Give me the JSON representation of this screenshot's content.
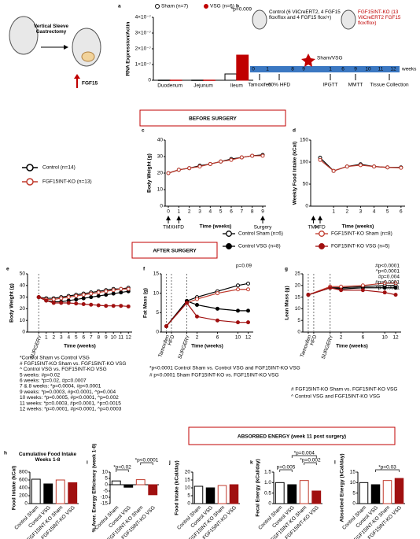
{
  "diagram_a": {
    "procedure": "Vertical Sleeve Gastrectomy",
    "marker": "FGF15"
  },
  "panel_b": {
    "label": "b",
    "groups": [
      {
        "text": "Control (6 VilCreERT2, 4 FGF15 flox/flox and 4 FGF15 flox/+)",
        "color": "#000000"
      },
      {
        "text": "FGF15INT-KO (13 VilCreERT2 FGF15 flox/flox)",
        "color": "#c00000"
      }
    ],
    "timeline_ticks": [
      "0",
      "1",
      "8",
      "9",
      "1",
      "6",
      "9",
      "10",
      "11",
      "12"
    ],
    "unit": "weeks",
    "surgery": "Sham/VSG",
    "events": [
      "Tamoxifen",
      "60% HFD",
      "IPGTT",
      "MMTT",
      "Tissue Collection"
    ]
  },
  "sections": [
    "BEFORE SURGERY",
    "AFTER SURGERY",
    "ABSORBED ENERGY (week 11 post surgery)"
  ],
  "chart_data": [
    {
      "panel": "a",
      "type": "bar",
      "ylabel": "RNA Expression/Actin",
      "categories": [
        "Duodenum",
        "Jejunum",
        "Ileum"
      ],
      "series": [
        {
          "name": "Sham (n=7)",
          "color": "#ffffff",
          "edgecolor": "#000000",
          "values": [
            1e-09,
            1e-09,
            4e-08
          ]
        },
        {
          "name": "VSG (n=6)",
          "color": "#c00000",
          "edgecolor": "#c00000",
          "values": [
            1e-09,
            1e-09,
            1.6e-07
          ]
        }
      ],
      "ylim": [
        0,
        4e-07
      ],
      "yticks": [
        0,
        {
          "value": 1e-07,
          "label": "1×10⁻⁷"
        },
        {
          "value": 2e-07,
          "label": "2×10⁻⁷"
        },
        {
          "value": 3e-07,
          "label": "3×10⁻⁷"
        },
        {
          "value": 4e-07,
          "label": "4×10⁻⁷"
        }
      ],
      "annotations": [
        "*p=0.009"
      ]
    },
    {
      "panel": "c",
      "type": "line",
      "ylabel": "Body Weight (g)",
      "xlabel": "Time (weeks)",
      "x": [
        0,
        1,
        2,
        3,
        4,
        5,
        6,
        7,
        8,
        9
      ],
      "xlim": [
        -0.3,
        9.3
      ],
      "xticks": [
        0,
        1,
        2,
        3,
        4,
        5,
        6,
        7,
        8,
        9
      ],
      "ylim": [
        0,
        40
      ],
      "yticks": [
        0,
        10,
        20,
        30,
        40
      ],
      "series": [
        {
          "name": "Control (n=14)",
          "color": "#000000",
          "facecolor": "#ffffff",
          "values": [
            20,
            22,
            23,
            24.5,
            25.5,
            27,
            28.5,
            29.5,
            30.5,
            31
          ]
        },
        {
          "name": "FGF15INT-KO (n=13)",
          "color": "#c0392b",
          "facecolor": "#ffffff",
          "values": [
            20,
            22,
            23,
            24,
            25.5,
            27,
            28,
            29.5,
            30.5,
            30.5
          ]
        }
      ],
      "markers": [
        {
          "x": 0,
          "label": "TMX"
        },
        {
          "x": 1,
          "label": "HFD"
        },
        {
          "x": 9,
          "label": "Surgery"
        }
      ]
    },
    {
      "panel": "d",
      "type": "line",
      "ylabel": "Weekly Food Intake (kCal)",
      "xlabel": "Time (weeks)",
      "x": [
        0,
        1,
        2,
        3,
        4,
        5,
        6
      ],
      "xlim": [
        -0.7,
        6.3
      ],
      "xticks": [
        1,
        2,
        3,
        4,
        5,
        6
      ],
      "ylim": [
        0,
        150
      ],
      "yticks": [
        0,
        50,
        100,
        150
      ],
      "series": [
        {
          "color": "#000000",
          "facecolor": "#ffffff",
          "values": [
            110,
            80,
            90,
            95,
            90,
            88,
            88
          ]
        },
        {
          "color": "#c0392b",
          "facecolor": "#ffffff",
          "values": [
            105,
            80,
            90,
            93,
            90,
            88,
            87
          ]
        }
      ],
      "markers": [
        {
          "x": -0.5,
          "label": "TMX"
        },
        {
          "x": 0,
          "label": "HFD"
        }
      ]
    },
    {
      "panel": "e",
      "type": "line",
      "ylabel": "Body Weight (g)",
      "xlabel": "Time (weeks)",
      "x": [
        0,
        1,
        2,
        3,
        4,
        5,
        6,
        7,
        8,
        9,
        10,
        11,
        12
      ],
      "xlim": [
        -1.5,
        12.5
      ],
      "xticks": [
        {
          "value": 0,
          "label": "SURGERY"
        },
        1,
        2,
        3,
        4,
        5,
        6,
        7,
        8,
        9,
        10,
        11,
        12
      ],
      "ylim": [
        0,
        50
      ],
      "yticks": [
        0,
        10,
        20,
        30,
        40,
        50
      ],
      "series": [
        {
          "name": "Control Sham (n=6)",
          "color": "#000000",
          "facecolor": "#ffffff",
          "values": [
            30,
            29,
            29,
            30,
            31,
            32,
            33,
            34,
            35,
            36,
            37,
            37,
            38
          ]
        },
        {
          "name": "Control VSG (n=8)",
          "color": "#000000",
          "facecolor": "#000000",
          "values": [
            30,
            27,
            26,
            26,
            27,
            28,
            29,
            30,
            31,
            32,
            33,
            34,
            35
          ]
        },
        {
          "name": "FGF15INT-KO Sham (n=8)",
          "color": "#c0392b",
          "facecolor": "#ffffff",
          "values": [
            30,
            28,
            28,
            29,
            30,
            31,
            32,
            33,
            34,
            35,
            36,
            37,
            37
          ]
        },
        {
          "name": "FGF15INT-KO VSG (n=5)",
          "color": "#a01010",
          "facecolor": "#a01010",
          "values": [
            30,
            27,
            25,
            25,
            25,
            24.5,
            24,
            23.5,
            23,
            22.5,
            22.5,
            22.5,
            22
          ]
        }
      ],
      "notes": [
        "*Control Sham vs Control VSG",
        "# FGF15INT-KO Sham vs. FGF15INT-KO VSG",
        "^ Control VSG vs. FGF15INT-KO VSG",
        "5 weeks: #p=0.02",
        "6 weeks: *p=0.02, #p=0.0007",
        "7 & 8 weeks: *p=0.0004, #p<0.0001",
        "9 weeks: *p=0.0003, #p<0.0001, ^p=0.004",
        "10 weeks: *p=0.0005, #p<0.0001, ^p=0.002",
        "11 weeks: *p=0.0003, #p<0.0001, ^p=0.0015",
        "12 weeks: *p=0.0001, #p<0.0001, ^p=0.0003"
      ]
    },
    {
      "panel": "f",
      "type": "line",
      "ylabel": "Fat Mass (g)",
      "xlabel": "Time (weeks)",
      "x": [
        -4,
        0,
        2,
        6,
        10,
        12
      ],
      "xlim": [
        -5,
        13
      ],
      "xticks": [
        {
          "value": -4,
          "label": "Tamoxifen"
        },
        {
          "value": -3,
          "label": "HFD"
        },
        {
          "value": 0,
          "label": "SURGERY"
        },
        2,
        6,
        10,
        12
      ],
      "ylim": [
        0,
        15
      ],
      "yticks": [
        0,
        5,
        10,
        15
      ],
      "series": [
        {
          "color": "#000000",
          "facecolor": "#ffffff",
          "values": [
            1.5,
            8,
            9,
            10.5,
            12,
            12.5
          ]
        },
        {
          "color": "#000000",
          "facecolor": "#000000",
          "values": [
            1.5,
            8,
            7,
            6,
            5.5,
            5.5
          ]
        },
        {
          "color": "#c0392b",
          "facecolor": "#ffffff",
          "values": [
            1.5,
            7.5,
            8.5,
            10,
            11,
            11
          ]
        },
        {
          "color": "#a01010",
          "facecolor": "#a01010",
          "values": [
            1.5,
            7.5,
            4,
            3,
            2.5,
            2.5
          ]
        }
      ],
      "annotations": [
        "p=0.09"
      ],
      "notes": [
        "*p<0.0001 Control Sham vs. Control VSG and FGF15INT-KO VSG",
        "# p<0.0001 Sham FGF15INT-KO vs. FGF15INT-KO VSG"
      ]
    },
    {
      "panel": "g",
      "type": "line",
      "ylabel": "Lean Mass (g)",
      "xlabel": "Time (weeks)",
      "x": [
        -4,
        0,
        2,
        6,
        10,
        12
      ],
      "xlim": [
        -5,
        13
      ],
      "xticks": [
        {
          "value": -4,
          "label": "Tamoxifen"
        },
        {
          "value": -3,
          "label": "HFD"
        },
        {
          "value": 0,
          "label": "SURGERY"
        },
        2,
        6,
        10,
        12
      ],
      "ylim": [
        0,
        25
      ],
      "yticks": [
        0,
        5,
        10,
        15,
        20,
        25
      ],
      "series": [
        {
          "color": "#000000",
          "facecolor": "#ffffff",
          "values": [
            16,
            19,
            19,
            19.5,
            20,
            20
          ]
        },
        {
          "color": "#000000",
          "facecolor": "#000000",
          "values": [
            16,
            19,
            18.5,
            19,
            19,
            19
          ]
        },
        {
          "color": "#c0392b",
          "facecolor": "#ffffff",
          "values": [
            16,
            19.5,
            19.5,
            20,
            21,
            21
          ]
        },
        {
          "color": "#a01010",
          "facecolor": "#a01010",
          "values": [
            16,
            19,
            18,
            18,
            17,
            16
          ]
        }
      ],
      "annotations": [
        "#p<0.0001",
        "^p<0.0001",
        "#p=0.004",
        "#p=0.0001",
        "^p<0.0001"
      ],
      "notes": [
        "# FGF15INT-KO Sham vs. FGF15INT-KO VSG",
        "^ Control VSG and FGF15INT-KO VSG"
      ]
    },
    {
      "panel": "h",
      "type": "bar",
      "title": "Cumulative Food Intake Weeks 1-8",
      "ylabel": "Food Intake (kCal)",
      "categories": [
        "Control Sham",
        "Control VSG",
        "FGF15INT-KO Sham",
        "FGF15INT-KO VSG"
      ],
      "values": [
        620,
        500,
        600,
        530
      ],
      "colors": [
        "#ffffff",
        "#000000",
        "#ffffff",
        "#a01010"
      ],
      "edgecolors": [
        "#000000",
        "#000000",
        "#c0392b",
        "#a01010"
      ],
      "ylim": [
        0,
        800
      ],
      "yticks": [
        0,
        200,
        400,
        600,
        800
      ]
    },
    {
      "panel": "i",
      "type": "bar",
      "ylabel": "% Aver. Energy Efficiency (week 1-8)",
      "categories": [
        "Control Sham",
        "Control VSG",
        "FGF15INT-KO Sham",
        "FGF15INT-KO VSG"
      ],
      "values": [
        3,
        -2,
        4,
        -8
      ],
      "colors": [
        "#ffffff",
        "#000000",
        "#ffffff",
        "#a01010"
      ],
      "edgecolors": [
        "#000000",
        "#000000",
        "#c0392b",
        "#a01010"
      ],
      "ylim": [
        -15,
        10
      ],
      "yticks": [
        -15,
        -10,
        -5,
        0,
        5,
        10
      ],
      "brackets": [
        {
          "from": 0,
          "to": 1,
          "label": "*p=0.02"
        },
        {
          "from": 2,
          "to": 3,
          "label": "*p<0.0001"
        }
      ]
    },
    {
      "panel": "j",
      "type": "bar",
      "ylabel": "Food Intake (kCal/day)",
      "categories": [
        "Control Sham",
        "Control VSG",
        "FGF15INT-KO Sham",
        "FGF15INT-KO VSG"
      ],
      "values": [
        11,
        10,
        11.5,
        12
      ],
      "colors": [
        "#ffffff",
        "#000000",
        "#ffffff",
        "#a01010"
      ],
      "edgecolors": [
        "#000000",
        "#000000",
        "#c0392b",
        "#a01010"
      ],
      "ylim": [
        0,
        20
      ],
      "yticks": [
        0,
        5,
        10,
        15,
        20
      ]
    },
    {
      "panel": "k",
      "type": "bar",
      "ylabel": "Fecal Energy (kCal/day)",
      "categories": [
        "Control Sham",
        "Control VSG",
        "FGF15INT-KO Sham",
        "FGF15INT-KO VSG"
      ],
      "values": [
        1.0,
        0.9,
        1.1,
        0.6
      ],
      "colors": [
        "#ffffff",
        "#000000",
        "#ffffff",
        "#a01010"
      ],
      "edgecolors": [
        "#000000",
        "#000000",
        "#c0392b",
        "#a01010"
      ],
      "ylim": [
        0,
        1.5
      ],
      "yticks": [
        0,
        0.5,
        {
          "value": 1,
          "label": "1.0"
        },
        1.5
      ],
      "brackets": [
        {
          "from": 0,
          "to": 1,
          "label": "p=0.005"
        },
        {
          "from": 2,
          "to": 3,
          "label": "*p=0.002"
        },
        {
          "from": 1,
          "to": 3,
          "label": "*p=0.004"
        }
      ]
    },
    {
      "panel": "l",
      "type": "bar",
      "ylabel": "Absorbed Energy (kCal/day)",
      "categories": [
        "Control Sham",
        "Control VSG",
        "FGF15INT-KO Sham",
        "FGF15INT-KO VSG"
      ],
      "values": [
        10,
        9,
        11,
        12
      ],
      "colors": [
        "#ffffff",
        "#000000",
        "#ffffff",
        "#a01010"
      ],
      "edgecolors": [
        "#000000",
        "#000000",
        "#c0392b",
        "#a01010"
      ],
      "ylim": [
        0,
        15
      ],
      "yticks": [
        0,
        5,
        10,
        15
      ],
      "brackets": [
        {
          "from": 1,
          "to": 3,
          "label": "*p=0.03"
        }
      ]
    }
  ]
}
